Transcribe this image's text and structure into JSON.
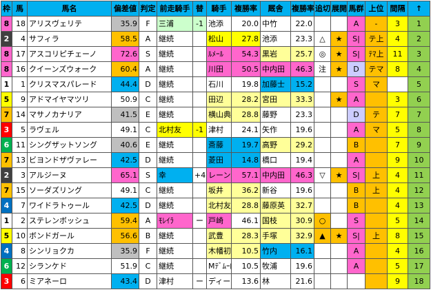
{
  "headers": [
    "枠",
    "馬",
    "馬名",
    "偏差値",
    "判定",
    "前走騎手",
    "替",
    "騎手",
    "複勝率",
    "厩舎",
    "複勝率",
    "追切",
    "展開",
    "馬群",
    "上位",
    "間隔",
    "↑"
  ],
  "waku_colors": {
    "1": {
      "bg": "#ffffff",
      "fg": "#000000"
    },
    "2": {
      "bg": "#404040",
      "fg": "#ffffff"
    },
    "3": {
      "bg": "#ff0000",
      "fg": "#ffffff"
    },
    "4": {
      "bg": "#0070c0",
      "fg": "#ffffff"
    },
    "5": {
      "bg": "#ffff00",
      "fg": "#000000"
    },
    "6": {
      "bg": "#00b050",
      "fg": "#ffffff"
    },
    "7": {
      "bg": "#ffc000",
      "fg": "#000000"
    },
    "8": {
      "bg": "#ff66cc",
      "fg": "#000000"
    }
  },
  "highlight_colors": {
    "gray": "#bfbfbf",
    "yellow": "#ffff00",
    "blue": "#00b0f0",
    "pink": "#ff66cc",
    "green": "#92d050",
    "orange": "#ffc000",
    "lavender": "#ccccff",
    "mint": "#ccffcc",
    "cyan": "#ccffff",
    "lightyellow": "#ffff99"
  },
  "rows": [
    {
      "waku": "8",
      "uma": "18",
      "name": "アリスヴェリテ",
      "hensa": "35.9",
      "hantei": "F",
      "zen": "三浦",
      "kawari": "-1",
      "kishu": "池添",
      "kishu_rate": "20.0",
      "kyusha": "中竹",
      "kyusha_rate": "22.0",
      "oikiri": "",
      "tenkai": "",
      "bagun": "A",
      "joi": "-",
      "kankaku": "3",
      "up": "1"
    },
    {
      "waku": "2",
      "uma": "4",
      "name": "サフィラ",
      "hensa": "58.5",
      "hantei": "A",
      "zen": "継続",
      "kawari": "",
      "kishu": "松山",
      "kishu_rate": "27.8",
      "kyusha": "池添",
      "kyusha_rate": "23.3",
      "oikiri": "△",
      "tenkai": "★",
      "bagun": "S|",
      "joi": "テ上",
      "kankaku": "4",
      "up": "2"
    },
    {
      "waku": "8",
      "uma": "17",
      "name": "アスコリピチェーノ",
      "hensa": "72.6",
      "hantei": "S",
      "zen": "継続",
      "kawari": "",
      "kishu": "ﾙﾒｰﾙ",
      "kishu_rate": "54.3",
      "kyusha": "黒岩",
      "kyusha_rate": "25.7",
      "oikiri": "◎",
      "tenkai": "★",
      "bagun": "S|",
      "joi": "ﾃﾏ上",
      "kankaku": "11",
      "up": "3"
    },
    {
      "waku": "8",
      "uma": "16",
      "name": "クイーンズウォーク",
      "hensa": "60.4",
      "hantei": "A",
      "zen": "継続",
      "kawari": "",
      "kishu": "川田",
      "kishu_rate": "50.5",
      "kyusha": "中内田",
      "kyusha_rate": "46.3",
      "oikiri": "注",
      "tenkai": "★",
      "bagun": "D",
      "joi": "テマ",
      "kankaku": "8",
      "up": "4"
    },
    {
      "waku": "1",
      "uma": "1",
      "name": "クリスマスパレード",
      "hensa": "44.4",
      "hantei": "D",
      "zen": "継続",
      "kawari": "",
      "kishu": "石川",
      "kishu_rate": "19.8",
      "kyusha": "加藤士",
      "kyusha_rate": "15.2",
      "oikiri": "",
      "tenkai": "",
      "bagun": "S",
      "joi": "マ",
      "kankaku": "",
      "up": "5"
    },
    {
      "waku": "5",
      "uma": "9",
      "name": "アドマイヤマツリ",
      "hensa": "50.9",
      "hantei": "C",
      "zen": "継続",
      "kawari": "",
      "kishu": "田辺",
      "kishu_rate": "28.2",
      "kyusha": "宮田",
      "kyusha_rate": "33.3",
      "oikiri": "",
      "tenkai": "★",
      "bagun": "A",
      "joi": "",
      "kankaku": "3",
      "up": "6"
    },
    {
      "waku": "7",
      "uma": "14",
      "name": "マサノカナリア",
      "hensa": "41.5",
      "hantei": "E",
      "zen": "継続",
      "kawari": "",
      "kishu": "横山典",
      "kishu_rate": "28.8",
      "kyusha": "藤野",
      "kyusha_rate": "23.3",
      "oikiri": "",
      "tenkai": "",
      "bagun": "D",
      "joi": "テ",
      "kankaku": "7",
      "up": "7"
    },
    {
      "waku": "3",
      "uma": "5",
      "name": "ラヴェル",
      "hensa": "49.1",
      "hantei": "C",
      "zen": "北村友",
      "kawari": "-1",
      "kishu": "津村",
      "kishu_rate": "24.1",
      "kyusha": "矢作",
      "kyusha_rate": "19.6",
      "oikiri": "",
      "tenkai": "",
      "bagun": "A",
      "joi": "マ",
      "kankaku": "5",
      "up": "8"
    },
    {
      "waku": "6",
      "uma": "11",
      "name": "シングザットソング",
      "hensa": "40.6",
      "hantei": "E",
      "zen": "継続",
      "kawari": "",
      "kishu": "斎藤",
      "kishu_rate": "19.7",
      "kyusha": "高野",
      "kyusha_rate": "29.2",
      "oikiri": "",
      "tenkai": "",
      "bagun": "B",
      "joi": "",
      "kankaku": "7",
      "up": "9"
    },
    {
      "waku": "7",
      "uma": "13",
      "name": "ビヨンドザヴァレー",
      "hensa": "42.5",
      "hantei": "D",
      "zen": "継続",
      "kawari": "",
      "kishu": "菱田",
      "kishu_rate": "14.8",
      "kyusha": "橋口",
      "kyusha_rate": "19.4",
      "oikiri": "",
      "tenkai": "",
      "bagun": "A",
      "joi": "",
      "kankaku": "9",
      "up": "10"
    },
    {
      "waku": "2",
      "uma": "3",
      "name": "アルジーヌ",
      "hensa": "65.1",
      "hantei": "S",
      "zen": "幸",
      "kawari": "+4",
      "kishu": "レーン",
      "kishu_rate": "57.1",
      "kyusha": "中内田",
      "kyusha_rate": "46.3",
      "oikiri": "▽",
      "tenkai": "★",
      "bagun": "S|",
      "joi": "上",
      "kankaku": "4",
      "up": "11"
    },
    {
      "waku": "7",
      "uma": "15",
      "name": "ソーダズリング",
      "hensa": "49.1",
      "hantei": "C",
      "zen": "継続",
      "kawari": "",
      "kishu": "坂井",
      "kishu_rate": "36.2",
      "kyusha": "新谷",
      "kyusha_rate": "19.6",
      "oikiri": "",
      "tenkai": "",
      "bagun": "B",
      "joi": "上",
      "kankaku": "4",
      "up": "12"
    },
    {
      "waku": "4",
      "uma": "7",
      "name": "ワイドラトゥール",
      "hensa": "42.5",
      "hantei": "D",
      "zen": "継続",
      "kawari": "",
      "kishu": "北村友",
      "kishu_rate": "28.8",
      "kyusha": "藤原英",
      "kyusha_rate": "32.7",
      "oikiri": "",
      "tenkai": "",
      "bagun": "B",
      "joi": "",
      "kankaku": "4",
      "up": "13"
    },
    {
      "waku": "1",
      "uma": "2",
      "name": "ステレンボッシュ",
      "hensa": "59.4",
      "hantei": "A",
      "zen": "ﾓﾚｲﾗ",
      "kawari": "ー",
      "kishu": "戸崎",
      "kishu_rate": "46.1",
      "kyusha": "国枝",
      "kyusha_rate": "30.9",
      "oikiri": "○",
      "tenkai": "",
      "bagun": "S",
      "joi": "",
      "kankaku": "5",
      "up": "14"
    },
    {
      "waku": "5",
      "uma": "10",
      "name": "ボンドガール",
      "hensa": "56.6",
      "hantei": "B",
      "zen": "継続",
      "kawari": "",
      "kishu": "武豊",
      "kishu_rate": "28.3",
      "kyusha": "手塚",
      "kyusha_rate": "32.9",
      "oikiri": "▲",
      "tenkai": "★",
      "bagun": "S|",
      "joi": "上",
      "kankaku": "8",
      "up": "15"
    },
    {
      "waku": "4",
      "uma": "8",
      "name": "シンリョクカ",
      "hensa": "35.9",
      "hantei": "F",
      "zen": "継続",
      "kawari": "",
      "kishu": "木幡初",
      "kishu_rate": "10.5",
      "kyusha": "竹内",
      "kyusha_rate": "16.1",
      "oikiri": "",
      "tenkai": "",
      "bagun": "A",
      "joi": "",
      "kankaku": "4",
      "up": "16"
    },
    {
      "waku": "6",
      "uma": "12",
      "name": "シランケド",
      "hensa": "51.9",
      "hantei": "C",
      "zen": "継続",
      "kawari": "",
      "kishu": "Mﾃﾞﾑｰﾛ",
      "kishu_rate": "10.5",
      "kyusha": "牧浦",
      "kyusha_rate": "19.6",
      "oikiri": "",
      "tenkai": "",
      "bagun": "A",
      "joi": "",
      "kankaku": "5",
      "up": "17"
    },
    {
      "waku": "3",
      "uma": "6",
      "name": "ミアネーロ",
      "hensa": "43.4",
      "hantei": "D",
      "zen": "津村",
      "kawari": "ー",
      "kishu": "ディー",
      "kishu_rate": "13.6",
      "kyusha": "林",
      "kyusha_rate": "21.6",
      "oikiri": "",
      "tenkai": "",
      "bagun": "",
      "joi": "",
      "kankaku": "9",
      "up": "18"
    }
  ]
}
